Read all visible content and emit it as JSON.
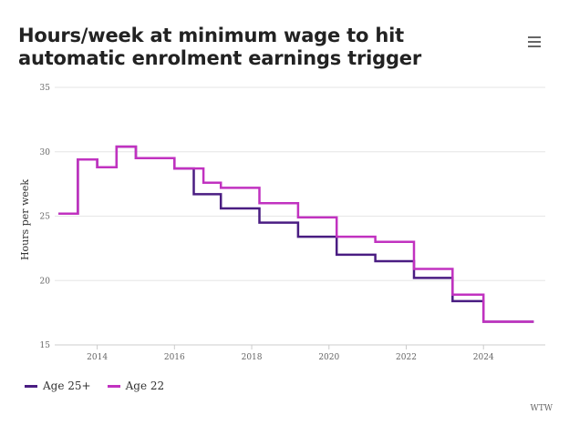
{
  "page": {
    "title": "Hours/week at minimum wage to hit automatic enrolment earnings trigger",
    "menu_icon": "hamburger-menu-icon",
    "credit": "WTW"
  },
  "chart_data": {
    "type": "line",
    "step": true,
    "title": "Hours/week at minimum wage to hit automatic enrolment earnings trigger",
    "xlabel": "",
    "ylabel": "Hours per week",
    "xlim": [
      2012.9,
      2025.6
    ],
    "ylim": [
      15,
      35
    ],
    "yticks": [
      15,
      20,
      25,
      30,
      35
    ],
    "xticks": [
      2014,
      2016,
      2018,
      2020,
      2022,
      2024
    ],
    "grid": true,
    "legend_position": "bottom-left",
    "series": [
      {
        "name": "Age 25+",
        "color": "#4a1d82",
        "points": [
          [
            2013.0,
            25.2
          ],
          [
            2013.5,
            29.4
          ],
          [
            2014.0,
            28.8
          ],
          [
            2014.5,
            30.4
          ],
          [
            2015.0,
            29.5
          ],
          [
            2016.0,
            28.7
          ],
          [
            2016.5,
            26.7
          ],
          [
            2017.2,
            25.6
          ],
          [
            2018.2,
            24.5
          ],
          [
            2019.2,
            23.4
          ],
          [
            2020.2,
            22.0
          ],
          [
            2021.2,
            21.5
          ],
          [
            2022.2,
            20.2
          ],
          [
            2023.2,
            18.4
          ],
          [
            2024.0,
            16.8
          ],
          [
            2025.3,
            16.8
          ]
        ]
      },
      {
        "name": "Age 22",
        "color": "#c132c0",
        "points": [
          [
            2013.0,
            25.2
          ],
          [
            2013.5,
            29.4
          ],
          [
            2014.0,
            28.8
          ],
          [
            2014.5,
            30.4
          ],
          [
            2015.0,
            29.5
          ],
          [
            2016.0,
            28.7
          ],
          [
            2016.75,
            27.6
          ],
          [
            2017.2,
            27.2
          ],
          [
            2018.2,
            26.0
          ],
          [
            2019.2,
            24.9
          ],
          [
            2020.2,
            23.4
          ],
          [
            2021.2,
            23.0
          ],
          [
            2022.2,
            20.9
          ],
          [
            2023.2,
            18.9
          ],
          [
            2024.0,
            16.8
          ],
          [
            2025.3,
            16.8
          ]
        ]
      }
    ]
  },
  "legend": {
    "items": [
      "Age 25+",
      "Age 22"
    ]
  }
}
